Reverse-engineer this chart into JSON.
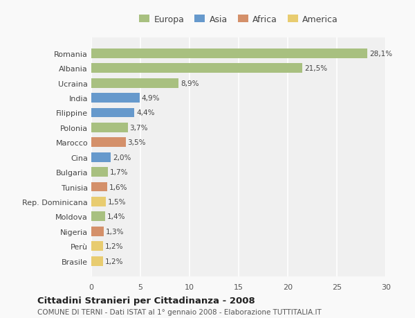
{
  "categories": [
    "Brasile",
    "Perù",
    "Nigeria",
    "Moldova",
    "Rep. Dominicana",
    "Tunisia",
    "Bulgaria",
    "Cina",
    "Marocco",
    "Polonia",
    "Filippine",
    "India",
    "Ucraina",
    "Albania",
    "Romania"
  ],
  "values": [
    1.2,
    1.2,
    1.3,
    1.4,
    1.5,
    1.6,
    1.7,
    2.0,
    3.5,
    3.7,
    4.4,
    4.9,
    8.9,
    21.5,
    28.1
  ],
  "labels": [
    "1,2%",
    "1,2%",
    "1,3%",
    "1,4%",
    "1,5%",
    "1,6%",
    "1,7%",
    "2,0%",
    "3,5%",
    "3,7%",
    "4,4%",
    "4,9%",
    "8,9%",
    "21,5%",
    "28,1%"
  ],
  "continents": [
    "America",
    "America",
    "Africa",
    "Europa",
    "America",
    "Africa",
    "Europa",
    "Asia",
    "Africa",
    "Europa",
    "Asia",
    "Asia",
    "Europa",
    "Europa",
    "Europa"
  ],
  "continent_colors": {
    "Europa": "#a8c080",
    "Asia": "#6699cc",
    "Africa": "#d4906a",
    "America": "#e8cc70"
  },
  "legend_order": [
    "Europa",
    "Asia",
    "Africa",
    "America"
  ],
  "title": "Cittadini Stranieri per Cittadinanza - 2008",
  "subtitle": "COMUNE DI TERNI - Dati ISTAT al 1° gennaio 2008 - Elaborazione TUTTITALIA.IT",
  "xlim": [
    0,
    30
  ],
  "xticks": [
    0,
    5,
    10,
    15,
    20,
    25,
    30
  ],
  "background_color": "#f9f9f9",
  "plot_bg_color": "#f0f0f0",
  "grid_color": "#ffffff",
  "bar_height": 0.65
}
